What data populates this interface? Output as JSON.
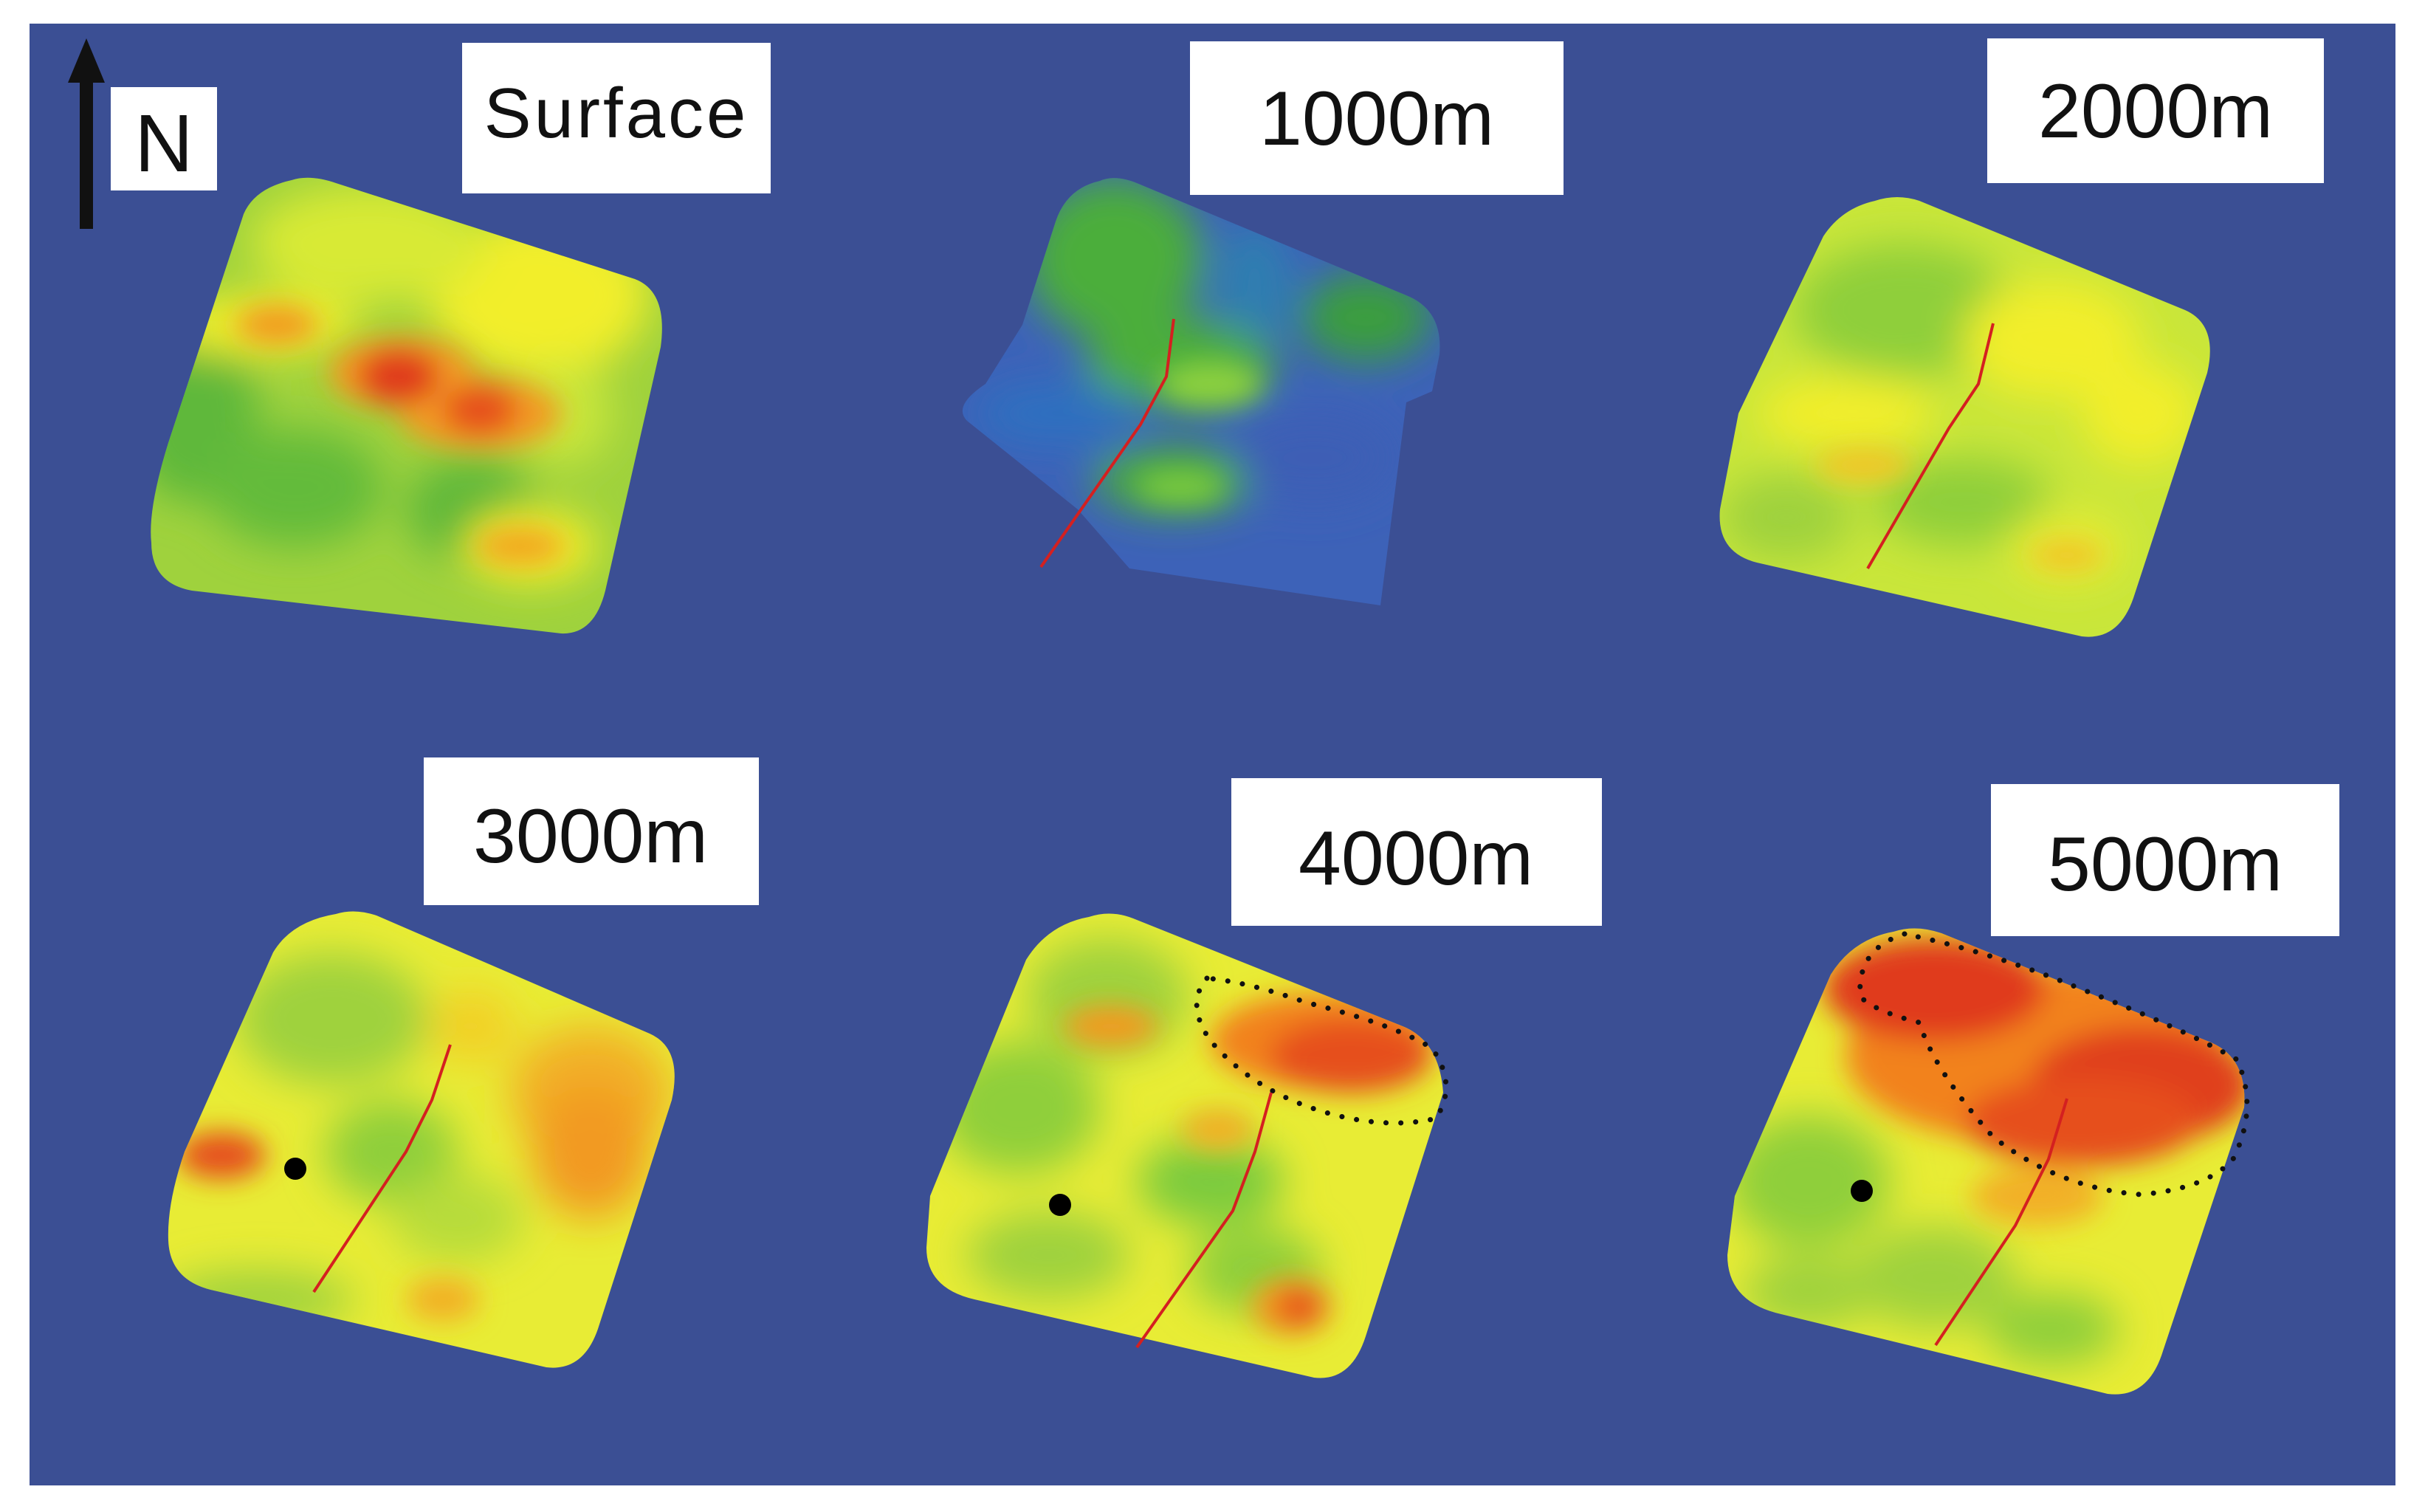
{
  "north_arrow": {
    "label": "N"
  },
  "panels": [
    {
      "id": "surface",
      "label": "Surface"
    },
    {
      "id": "d1000",
      "label": "1000m"
    },
    {
      "id": "d2000",
      "label": "2000m"
    },
    {
      "id": "d3000",
      "label": "3000m"
    },
    {
      "id": "d4000",
      "label": "4000m"
    },
    {
      "id": "d5000",
      "label": "5000m"
    }
  ],
  "colors": {
    "background": "#3b4f94",
    "low": "#2e5ed1",
    "mid_low": "#4cae3a",
    "mid": "#c9e63a",
    "high_mid": "#f2ee2a",
    "high": "#f29a22",
    "max": "#e03a1f",
    "fault": "#d42020",
    "well": "#000000"
  }
}
